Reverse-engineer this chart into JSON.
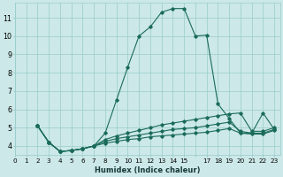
{
  "xlabel": "Humidex (Indice chaleur)",
  "bg_color": "#cce8e8",
  "grid_color": "#99cccc",
  "line_color": "#1a6b5a",
  "yticks": [
    4,
    5,
    6,
    7,
    8,
    9,
    10,
    11
  ],
  "ylim": [
    3.5,
    11.8
  ],
  "series": [
    [
      0,
      5.1,
      4.2,
      3.7,
      3.75,
      3.85,
      4.0,
      4.7,
      6.5,
      8.3,
      10.0,
      10.5,
      11.3,
      11.5,
      11.5,
      10.0,
      10.05,
      6.3,
      5.5,
      4.7,
      4.7,
      5.8,
      4.9
    ],
    [
      0,
      5.1,
      4.2,
      3.7,
      3.75,
      3.85,
      4.0,
      4.35,
      4.55,
      4.7,
      4.85,
      5.0,
      5.15,
      5.25,
      5.35,
      5.45,
      5.55,
      5.65,
      5.75,
      5.8,
      4.8,
      4.8,
      5.0
    ],
    [
      0,
      5.1,
      4.2,
      3.7,
      3.75,
      3.85,
      4.0,
      4.25,
      4.4,
      4.5,
      4.6,
      4.7,
      4.8,
      4.9,
      4.95,
      5.0,
      5.1,
      5.2,
      5.3,
      4.8,
      4.7,
      4.7,
      4.9
    ],
    [
      0,
      5.1,
      4.2,
      3.7,
      3.75,
      3.85,
      4.0,
      4.15,
      4.25,
      4.35,
      4.4,
      4.5,
      4.55,
      4.6,
      4.65,
      4.7,
      4.75,
      4.85,
      4.95,
      4.7,
      4.65,
      4.65,
      4.85
    ]
  ],
  "xtick_labels": [
    "0",
    "1",
    "2",
    "3",
    "4",
    "5",
    "6",
    "7",
    "8",
    "9",
    "10",
    "11",
    "12",
    "13",
    "14",
    "15",
    "",
    "17",
    "18",
    "19",
    "20",
    "21",
    "22",
    "23"
  ],
  "xlabel_fontsize": 6.0,
  "tick_fontsize": 5.2,
  "ytick_fontsize": 5.8
}
